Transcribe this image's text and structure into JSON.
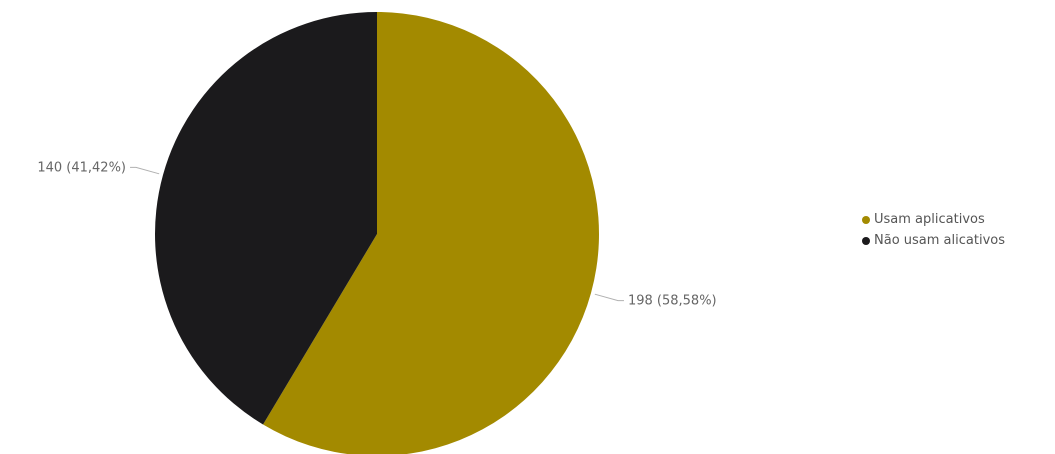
{
  "chart_data": {
    "type": "pie",
    "start_angle_deg": 0,
    "direction": "clockwise",
    "legend_position": "right",
    "slices": [
      {
        "name": "Usam aplicativos",
        "value": 198,
        "label": "198 (58,58%)",
        "color": "#a38a00"
      },
      {
        "name": "Não usam alicativos",
        "value": 140,
        "label": "140 (41,42%)",
        "color": "#1b1a1c"
      }
    ]
  }
}
